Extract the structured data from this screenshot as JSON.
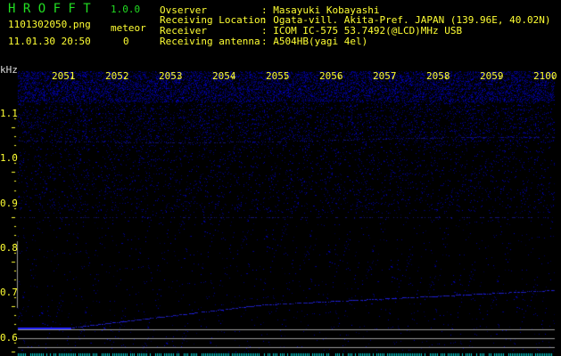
{
  "header": {
    "app_name": "H R O F F T",
    "version": "1.0.0",
    "filename": "1101302050.png",
    "datetime": "11.01.30 20:50",
    "meteor_label": "meteor",
    "meteor_count": "0"
  },
  "info": [
    {
      "label": "Ovserver",
      "value": ": Masayuki Kobayashi"
    },
    {
      "label": "Receiving Location",
      "value": ": Ogata-vill. Akita-Pref. JAPAN (139.96E, 40.02N)"
    },
    {
      "label": "Receiver",
      "value": ": ICOM IC-575 53.7492(@LCD)MHz USB"
    },
    {
      "label": "Receiving antenna",
      "value": ": A504HB(yagi 4el)"
    }
  ],
  "axis": {
    "unit": "kHz",
    "time_labels": [
      "2051",
      "2052",
      "2053",
      "2054",
      "2055",
      "2056",
      "2057",
      "2058",
      "2059",
      "2100"
    ],
    "freq_labels": [
      "1.1",
      "1.0",
      "0.9",
      "0.8",
      "0.7",
      "0.6"
    ]
  },
  "colors": {
    "text": "#ffff33",
    "title": "#22dd22",
    "signal": "#2020ff",
    "marker": "#999999"
  }
}
